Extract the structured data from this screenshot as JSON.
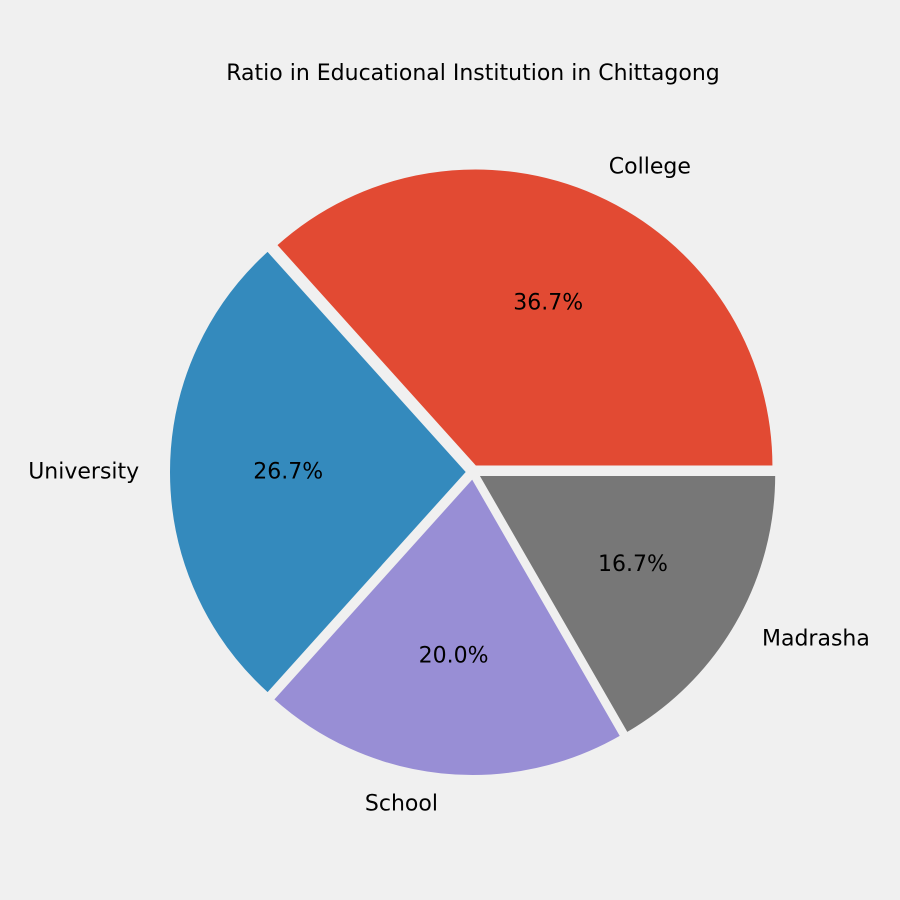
{
  "chart_data": {
    "type": "pie",
    "title": "Ratio in Educational Institution in Chittagong",
    "categories": [
      "College",
      "University",
      "School",
      "Madrasha"
    ],
    "values": [
      36.7,
      26.7,
      20.0,
      16.7
    ],
    "percent_labels": [
      "36.7%",
      "26.7%",
      "20.0%",
      "16.7%"
    ],
    "colors": [
      "#e24a33",
      "#348abd",
      "#988ed5",
      "#777777"
    ],
    "background": "#f0f0f0",
    "slice_edge_color": "#f0f0f0",
    "start_angle_deg": 0,
    "direction": "counterclockwise",
    "exploded": true
  }
}
